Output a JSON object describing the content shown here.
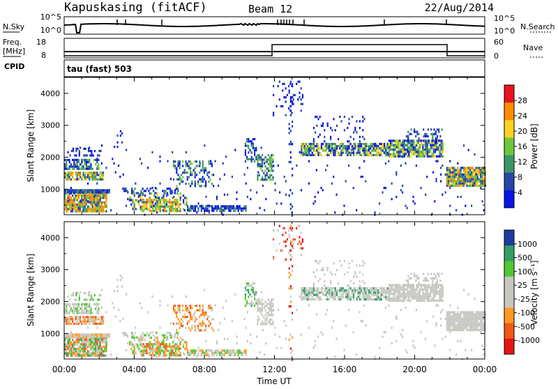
{
  "header": {
    "station": "Kapuskasing (fitACF)",
    "beam": "Beam 12",
    "date": "22/Aug/2014"
  },
  "noise_panel": {
    "left_label": "N.Sky",
    "left_ticks": [
      "10^5",
      "10^0"
    ],
    "right_ticks": [
      "10^5",
      "10^0"
    ],
    "right_label": "N.Search"
  },
  "freq_panel": {
    "left_label_1": "Freq.",
    "left_label_2": "[MHz]",
    "left_ticks": [
      "18",
      "8"
    ],
    "right_ticks": [
      "60",
      "0"
    ],
    "right_label": "Nave"
  },
  "cpid": {
    "label": "CPID",
    "value": "tau (fast) 503"
  },
  "chart_data": [
    {
      "type": "heatmap",
      "quantity": "Power",
      "xlabel": "",
      "ylabel": "Slant Range [km]",
      "x_range_hours": [
        0,
        24
      ],
      "ylim_km": [
        200,
        4500
      ],
      "yticks": [
        "4000",
        "3000",
        "2000",
        "1000"
      ],
      "colorbar_label": "Power [dB]",
      "colorbar_ticks": [
        "28",
        "24",
        "20",
        "16",
        "12",
        "8",
        "4"
      ],
      "colorbar_colors": [
        "#e8141e",
        "#ff8c00",
        "#ffd21e",
        "#6ec83c",
        "#3c9664",
        "#2846aa",
        "#0a14e6"
      ]
    },
    {
      "type": "heatmap",
      "quantity": "Velocity",
      "xlabel": "Time UT",
      "ylabel": "Slant Range [km]",
      "x_range_hours": [
        0,
        24
      ],
      "ylim_km": [
        200,
        4500
      ],
      "yticks": [
        "4000",
        "3000",
        "2000",
        "1000"
      ],
      "xticks": [
        "00:00",
        "04:00",
        "08:00",
        "12:00",
        "16:00",
        "20:00",
        "00:00"
      ],
      "colorbar_label": "Velocity [m s⁻¹]",
      "colorbar_ticks": [
        "1000",
        "500",
        "100",
        "25",
        "-25",
        "-100",
        "-500",
        "-1000"
      ],
      "colorbar_colors": [
        "#1e3ca0",
        "#32a064",
        "#50c832",
        "#c8c8c3",
        "#c8c8c3",
        "#ff9b1e",
        "#f05a14",
        "#e61414"
      ]
    }
  ]
}
